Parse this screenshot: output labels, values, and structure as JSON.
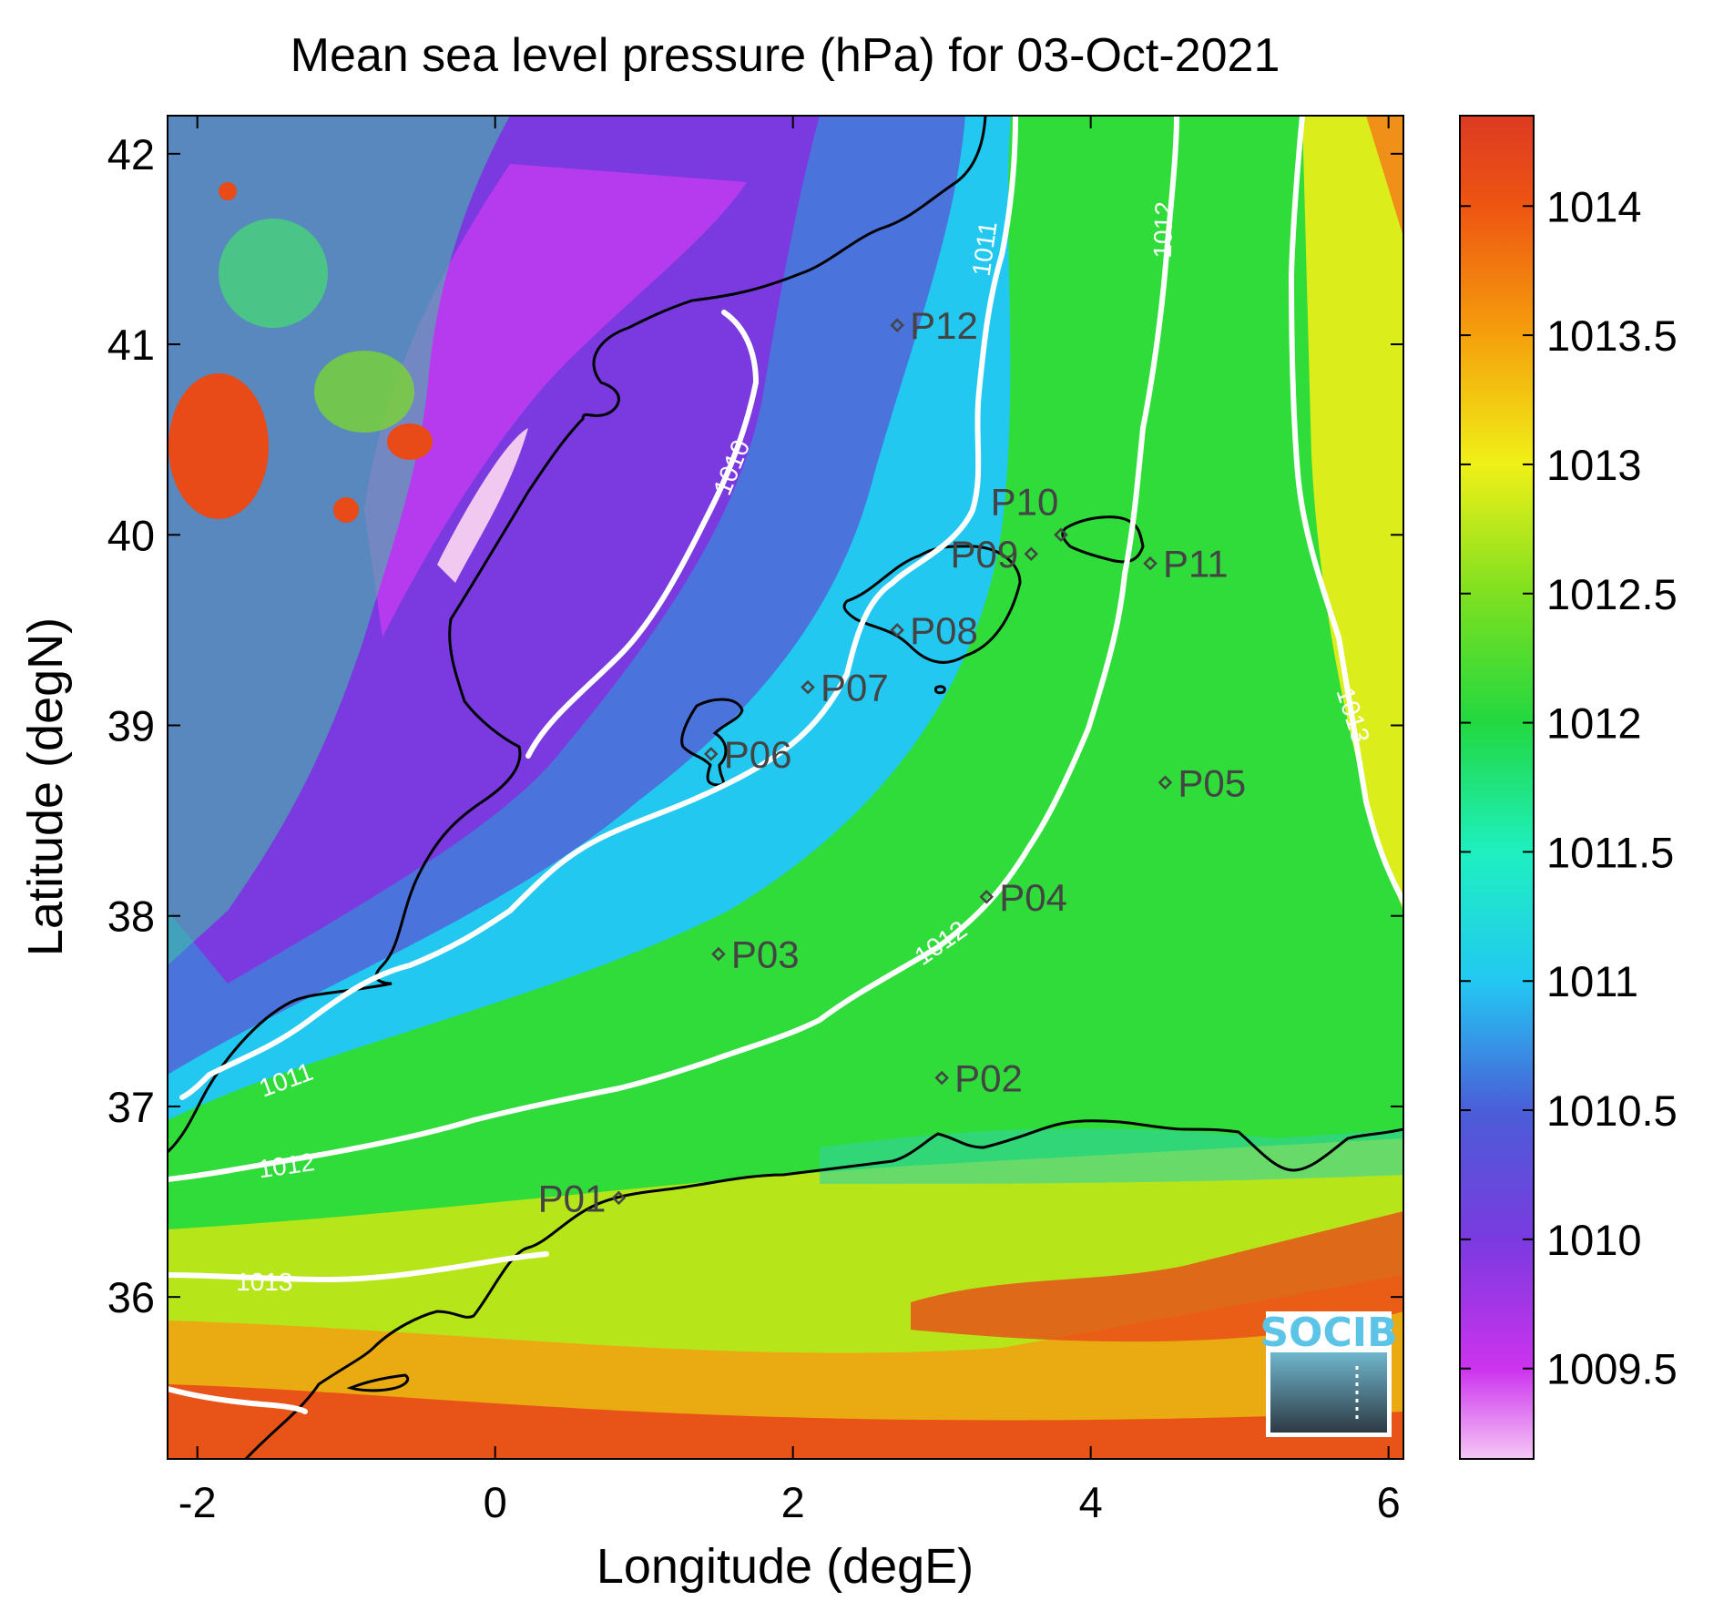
{
  "title": "Mean sea level pressure (hPa) for 03-Oct-2021",
  "xlabel": "Longitude (degE)",
  "ylabel": "Latitude (degN)",
  "xlim": [
    -2.2,
    6.1
  ],
  "ylim": [
    35.15,
    42.2
  ],
  "xticks": [
    -2,
    0,
    2,
    4,
    6
  ],
  "yticks": [
    36,
    37,
    38,
    39,
    40,
    41,
    42
  ],
  "colorbar": {
    "label_values": [
      1009.5,
      1010,
      1010.5,
      1011,
      1011.5,
      1012,
      1012.5,
      1013,
      1013.5,
      1014
    ],
    "labels": [
      "1009.5",
      "1010",
      "1010.5",
      "1011",
      "1011.5",
      "1012",
      "1012.5",
      "1013",
      "1013.5",
      "1014"
    ],
    "range": [
      1009.15,
      1014.35
    ],
    "stops": [
      {
        "v": 1009.15,
        "color": "#f5c6f5"
      },
      {
        "v": 1009.5,
        "color": "#cc33ee"
      },
      {
        "v": 1010.0,
        "color": "#7a3ae0"
      },
      {
        "v": 1010.5,
        "color": "#4a5ed8"
      },
      {
        "v": 1011.0,
        "color": "#22c8f2"
      },
      {
        "v": 1011.5,
        "color": "#1ef0c0"
      },
      {
        "v": 1012.0,
        "color": "#22d840"
      },
      {
        "v": 1012.5,
        "color": "#7ee020"
      },
      {
        "v": 1013.0,
        "color": "#f0f018"
      },
      {
        "v": 1013.5,
        "color": "#f5a00c"
      },
      {
        "v": 1014.0,
        "color": "#ee5512"
      },
      {
        "v": 1014.35,
        "color": "#dd3a22"
      }
    ]
  },
  "contour_labels": [
    {
      "text": "1010",
      "lon": 1.6,
      "lat": 40.35,
      "angle": -68
    },
    {
      "text": "1011",
      "lon": 3.3,
      "lat": 41.5,
      "angle": -82
    },
    {
      "text": "1011",
      "lon": -1.4,
      "lat": 37.13,
      "angle": -20
    },
    {
      "text": "1012",
      "lon": 4.5,
      "lat": 41.6,
      "angle": -88
    },
    {
      "text": "1012",
      "lon": 3.0,
      "lat": 37.85,
      "angle": -35
    },
    {
      "text": "1012",
      "lon": -1.4,
      "lat": 36.68,
      "angle": -8
    },
    {
      "text": "1013",
      "lon": 5.75,
      "lat": 39.05,
      "angle": 72
    },
    {
      "text": "1013",
      "lon": -1.55,
      "lat": 36.07,
      "angle": 0
    }
  ],
  "stations": [
    {
      "id": "P01",
      "lon": 0.83,
      "lat": 36.52,
      "label_side": "left"
    },
    {
      "id": "P02",
      "lon": 3.0,
      "lat": 37.15,
      "label_side": "right"
    },
    {
      "id": "P03",
      "lon": 1.5,
      "lat": 37.8,
      "label_side": "right"
    },
    {
      "id": "P04",
      "lon": 3.3,
      "lat": 38.1,
      "label_side": "right"
    },
    {
      "id": "P05",
      "lon": 4.5,
      "lat": 38.7,
      "label_side": "right"
    },
    {
      "id": "P06",
      "lon": 1.45,
      "lat": 38.85,
      "label_side": "right"
    },
    {
      "id": "P07",
      "lon": 2.1,
      "lat": 39.2,
      "label_side": "right"
    },
    {
      "id": "P08",
      "lon": 2.7,
      "lat": 39.5,
      "label_side": "right"
    },
    {
      "id": "P09",
      "lon": 3.6,
      "lat": 39.9,
      "label_side": "left"
    },
    {
      "id": "P10",
      "lon": 3.8,
      "lat": 40.0,
      "label_side": "above"
    },
    {
      "id": "P11",
      "lon": 4.4,
      "lat": 39.85,
      "label_side": "right"
    },
    {
      "id": "P12",
      "lon": 2.7,
      "lat": 41.1,
      "label_side": "right"
    }
  ],
  "logo": {
    "text": "SOCIB"
  }
}
